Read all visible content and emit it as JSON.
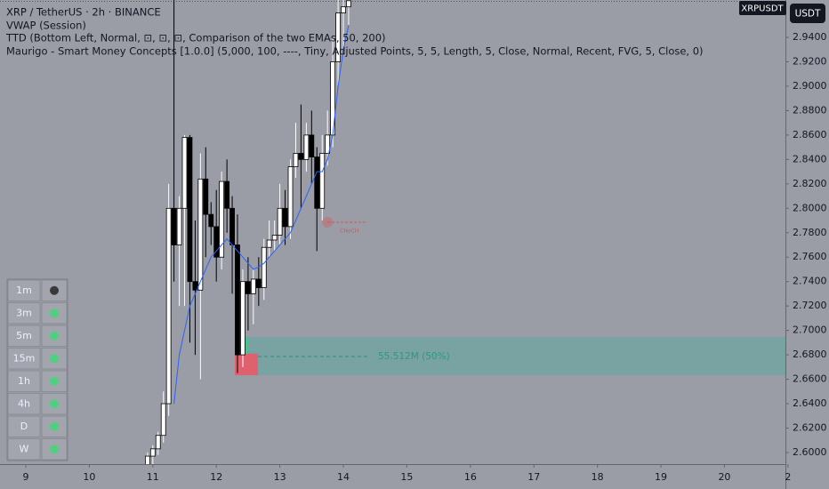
{
  "chart_data": {
    "type": "candlestick",
    "title": "XRP / TetherUS · 2h · BINANCE",
    "indicators": [
      "VWAP (Session)",
      "TTD (Bottom Left, Normal, ⊡, ⊡, ⊡, Comparison of the two EMAs, 50, 200)",
      "Maurigo - Smart Money Concepts [1.0.0] (5,000, 100, ----, Tiny, Adjusted Points, 5, 5, Length, 5, Close, Normal, Recent, FVG, 5, Close, 0)"
    ],
    "symbol_badge": "XRPUSDT",
    "currency_button": "USDT",
    "x": [
      10.917,
      11,
      11.083,
      11.167,
      11.25,
      11.333,
      11.417,
      11.5,
      11.583,
      11.667,
      11.75,
      11.833,
      11.917,
      12,
      12.083,
      12.167,
      12.25,
      12.333,
      12.417,
      12.5,
      12.583,
      12.667,
      12.75,
      12.833,
      12.917,
      13,
      13.083,
      13.167,
      13.25,
      13.333,
      13.417,
      13.5,
      13.583,
      13.667,
      13.75,
      13.833,
      13.917,
      14,
      14.083
    ],
    "open": [
      2.588,
      2.597,
      2.603,
      2.614,
      2.64,
      2.8,
      2.77,
      2.8,
      2.858,
      2.74,
      2.733,
      2.824,
      2.795,
      2.785,
      2.76,
      2.822,
      2.8,
      2.77,
      2.68,
      2.74,
      2.73,
      2.742,
      2.735,
      2.768,
      2.774,
      2.778,
      2.8,
      2.785,
      2.834,
      2.845,
      2.84,
      2.86,
      2.842,
      2.8,
      2.845,
      2.86,
      2.92,
      2.96,
      2.965
    ],
    "high": [
      2.6,
      2.606,
      2.617,
      2.65,
      2.82,
      2.975,
      2.81,
      2.86,
      2.86,
      2.79,
      2.845,
      2.85,
      2.805,
      2.815,
      2.83,
      2.84,
      2.81,
      2.795,
      2.75,
      2.76,
      2.75,
      2.76,
      2.775,
      2.79,
      2.79,
      2.82,
      2.815,
      2.84,
      2.87,
      2.885,
      2.87,
      2.88,
      2.85,
      2.86,
      2.88,
      2.94,
      2.975,
      2.975,
      2.975
    ],
    "low": [
      2.585,
      2.59,
      2.598,
      2.608,
      2.63,
      2.74,
      2.72,
      2.72,
      2.69,
      2.68,
      2.66,
      2.76,
      2.77,
      2.74,
      2.75,
      2.78,
      2.73,
      2.665,
      2.67,
      2.7,
      2.705,
      2.72,
      2.725,
      2.76,
      2.765,
      2.77,
      2.77,
      2.775,
      2.825,
      2.8,
      2.83,
      2.82,
      2.765,
      2.79,
      2.835,
      2.85,
      2.9,
      2.93,
      2.95
    ],
    "close": [
      2.597,
      2.603,
      2.614,
      2.64,
      2.8,
      2.77,
      2.8,
      2.858,
      2.74,
      2.733,
      2.824,
      2.795,
      2.785,
      2.76,
      2.822,
      2.8,
      2.77,
      2.68,
      2.74,
      2.73,
      2.742,
      2.735,
      2.768,
      2.774,
      2.778,
      2.8,
      2.785,
      2.834,
      2.845,
      2.84,
      2.86,
      2.842,
      2.8,
      2.845,
      2.86,
      2.92,
      2.96,
      2.965,
      2.97
    ],
    "vwap": [
      null,
      null,
      null,
      null,
      null,
      2.64,
      2.68,
      2.7,
      2.72,
      2.73,
      2.74,
      2.75,
      2.76,
      2.765,
      2.77,
      2.775,
      2.77,
      2.765,
      2.76,
      2.755,
      2.75,
      2.752,
      2.755,
      2.76,
      2.765,
      2.77,
      2.775,
      2.78,
      2.79,
      2.8,
      2.81,
      2.82,
      2.83,
      2.83,
      2.84,
      2.86,
      2.9,
      2.93,
      2.95
    ],
    "vwap_color": "#2962ff",
    "xlim": [
      8.594,
      20.96
    ],
    "ylim": [
      2.5905,
      2.9706
    ],
    "xticks": [
      9,
      10,
      11,
      12,
      13,
      14,
      15,
      16,
      17,
      18,
      19,
      20,
      {
        "value": 21,
        "label": "2"
      }
    ],
    "yticks": [
      {
        "value": 2.6,
        "label": "2.6000"
      },
      {
        "value": 2.62,
        "label": "2.6200"
      },
      {
        "value": 2.64,
        "label": "2.6400"
      },
      {
        "value": 2.66,
        "label": "2.6600"
      },
      {
        "value": 2.68,
        "label": "2.6800"
      },
      {
        "value": 2.7,
        "label": "2.7000"
      },
      {
        "value": 2.72,
        "label": "2.7200"
      },
      {
        "value": 2.74,
        "label": "2.7400"
      },
      {
        "value": 2.76,
        "label": "2.7600"
      },
      {
        "value": 2.78,
        "label": "2.7800"
      },
      {
        "value": 2.8,
        "label": "2.8000"
      },
      {
        "value": 2.82,
        "label": "2.8200"
      },
      {
        "value": 2.84,
        "label": "2.8400"
      },
      {
        "value": 2.86,
        "label": "2.8600"
      },
      {
        "value": 2.88,
        "label": "2.8800"
      },
      {
        "value": 2.9,
        "label": "2.9000"
      },
      {
        "value": 2.92,
        "label": "2.9200"
      },
      {
        "value": 2.94,
        "label": "2.9400"
      }
    ],
    "zone": {
      "top": 2.6946,
      "bottom": 2.6633,
      "level": 2.6786,
      "label": "55.512M (50%)",
      "color": "#5fa7a0"
    },
    "red_box": {
      "top": 2.681,
      "bottom": 2.6633,
      "color": "#e0616e"
    },
    "green_box": {
      "top": 2.6946,
      "bottom": 2.681,
      "color": "#4fbf93"
    },
    "choch": {
      "label": "CHoCH",
      "level": 2.7886,
      "color": "#d9534f"
    },
    "timeframes": [
      "1m",
      "3m",
      "5m",
      "15m",
      "1h",
      "4h",
      "D",
      "W"
    ]
  }
}
